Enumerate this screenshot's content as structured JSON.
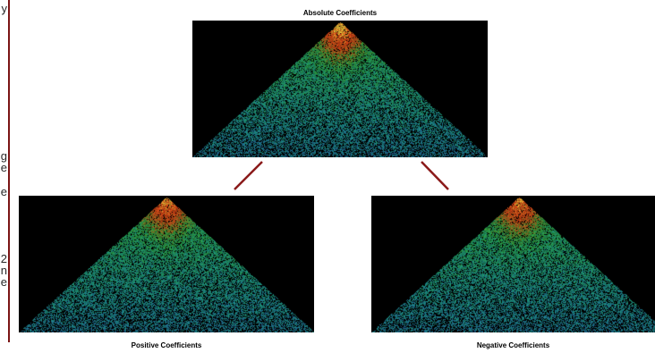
{
  "sidebar_fragments": [
    "y",
    "g",
    "e",
    "e",
    "2",
    "n",
    "e"
  ],
  "captions": {
    "absolute": "Absolute Coefficients",
    "positive": "Positive Coefficients",
    "negative": "Negative Coefficients"
  },
  "colors": {
    "divider": "#7a1414",
    "connector": "#8b1a1a",
    "panel_background": "#000000"
  },
  "palette_stops": [
    "#2b3f8c",
    "#1f7fa0",
    "#1fa07a",
    "#2fa83a",
    "#c8641e",
    "#e83c14",
    "#ffd23c"
  ]
}
